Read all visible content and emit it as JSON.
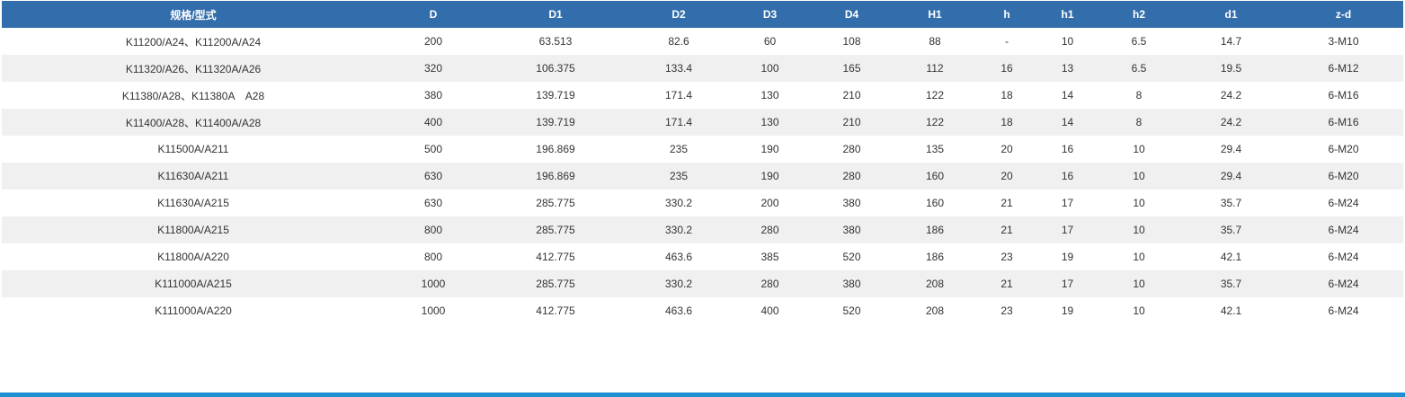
{
  "table": {
    "headers": [
      "规格/型式",
      "D",
      "D1",
      "D2",
      "D3",
      "D4",
      "H1",
      "h",
      "h1",
      "h2",
      "d1",
      "z-d"
    ],
    "rows": [
      [
        "K11200/A24、K11200A/A24",
        "200",
        "63.513",
        "82.6",
        "60",
        "108",
        "88",
        "-",
        "10",
        "6.5",
        "14.7",
        "3-M10"
      ],
      [
        "K11320/A26、K11320A/A26",
        "320",
        "106.375",
        "133.4",
        "100",
        "165",
        "112",
        "16",
        "13",
        "6.5",
        "19.5",
        "6-M12"
      ],
      [
        "K11380/A28、K11380A　A28",
        "380",
        "139.719",
        "171.4",
        "130",
        "210",
        "122",
        "18",
        "14",
        "8",
        "24.2",
        "6-M16"
      ],
      [
        "K11400/A28、K11400A/A28",
        "400",
        "139.719",
        "171.4",
        "130",
        "210",
        "122",
        "18",
        "14",
        "8",
        "24.2",
        "6-M16"
      ],
      [
        "K11500A/A211",
        "500",
        "196.869",
        "235",
        "190",
        "280",
        "135",
        "20",
        "16",
        "10",
        "29.4",
        "6-M20"
      ],
      [
        "K11630A/A211",
        "630",
        "196.869",
        "235",
        "190",
        "280",
        "160",
        "20",
        "16",
        "10",
        "29.4",
        "6-M20"
      ],
      [
        "K11630A/A215",
        "630",
        "285.775",
        "330.2",
        "200",
        "380",
        "160",
        "21",
        "17",
        "10",
        "35.7",
        "6-M24"
      ],
      [
        "K11800A/A215",
        "800",
        "285.775",
        "330.2",
        "280",
        "380",
        "186",
        "21",
        "17",
        "10",
        "35.7",
        "6-M24"
      ],
      [
        "K11800A/A220",
        "800",
        "412.775",
        "463.6",
        "385",
        "520",
        "186",
        "23",
        "19",
        "10",
        "42.1",
        "6-M24"
      ],
      [
        "K111000A/A215",
        "1000",
        "285.775",
        "330.2",
        "280",
        "380",
        "208",
        "21",
        "17",
        "10",
        "35.7",
        "6-M24"
      ],
      [
        "K111000A/A220",
        "1000",
        "412.775",
        "463.6",
        "400",
        "520",
        "208",
        "23",
        "19",
        "10",
        "42.1",
        "6-M24"
      ]
    ]
  },
  "colors": {
    "header_bg": "#336eac",
    "header_text": "#ffffff",
    "stripe_bg": "#f0f0f0",
    "body_text": "#333333",
    "bottom_line": "#1e8fd0"
  }
}
